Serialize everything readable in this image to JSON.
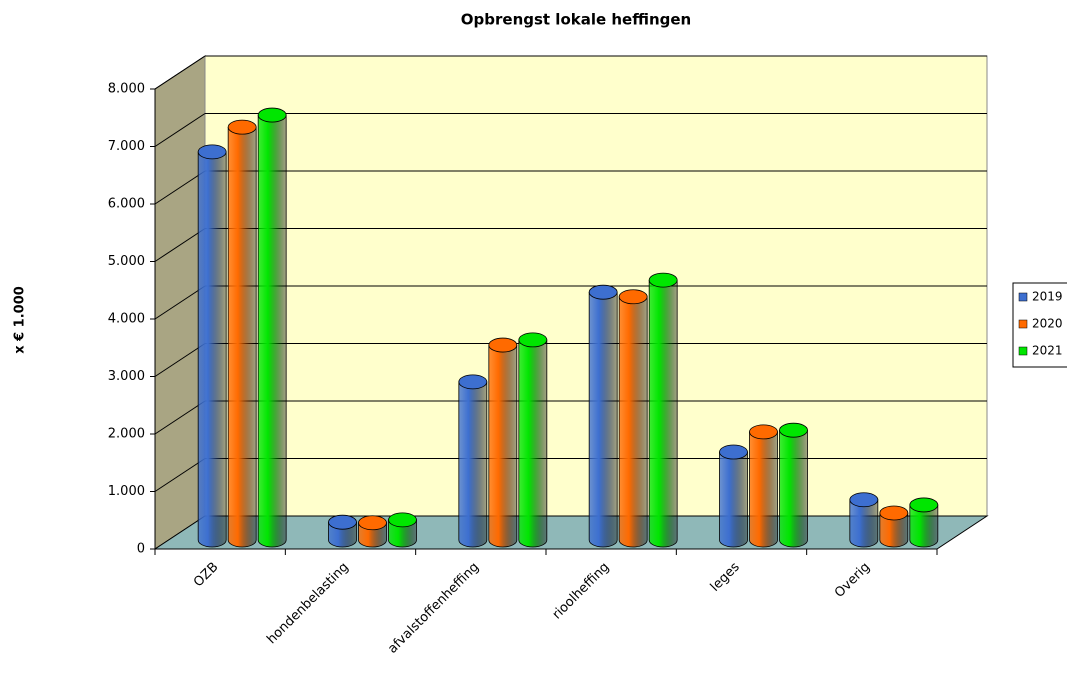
{
  "chart_data": {
    "type": "bar3d",
    "title": "Opbrengst lokale heffingen",
    "y_label": "x € 1.000",
    "categories": [
      "OZB",
      "hondenbelasting",
      "afvalstoffenheffing",
      "rioolheffing",
      "leges",
      "Overig"
    ],
    "series": [
      {
        "name": "2019",
        "color": "#3d6fd0",
        "values": [
          6750,
          310,
          2750,
          4310,
          1530,
          700
        ]
      },
      {
        "name": "2020",
        "color": "#ff6a00",
        "values": [
          7180,
          300,
          3390,
          4230,
          1880,
          470
        ]
      },
      {
        "name": "2021",
        "color": "#00e600",
        "values": [
          7390,
          350,
          3480,
          4520,
          1910,
          610
        ]
      }
    ],
    "ylim": [
      0,
      8000
    ],
    "yticks": [
      0,
      {
        "value": 1000,
        "label": "1.000"
      },
      {
        "value": 2000,
        "label": "2.000"
      },
      {
        "value": 3000,
        "label": "3.000"
      },
      {
        "value": 4000,
        "label": "4.000"
      },
      {
        "value": 5000,
        "label": "5.000"
      },
      {
        "value": 6000,
        "label": "6.000"
      },
      {
        "value": 7000,
        "label": "7.000"
      },
      {
        "value": 8000,
        "label": "8.000"
      }
    ],
    "grid": true,
    "legend": "right"
  }
}
